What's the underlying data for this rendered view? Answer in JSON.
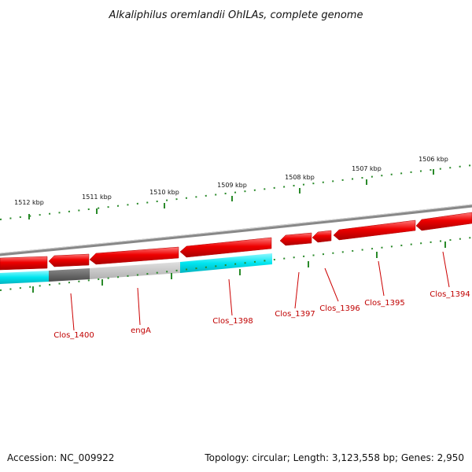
{
  "title": "Alkaliphilus oremlandii OhILAs, complete genome",
  "footer": {
    "accession": "Accession: NC_009922",
    "summary": "Topology: circular; Length: 3,123,558 bp; Genes: 2,950"
  },
  "scale_labels": [
    "1512 kbp",
    "1511 kbp",
    "1510 kbp",
    "1509 kbp",
    "1508 kbp",
    "1507 kbp",
    "1506 kbp"
  ],
  "genes": [
    {
      "name": "Clos_1400"
    },
    {
      "name": "engA"
    },
    {
      "name": "Clos_1398"
    },
    {
      "name": "Clos_1397"
    },
    {
      "name": "Clos_1396"
    },
    {
      "name": "Clos_1395"
    },
    {
      "name": "Clos_1394"
    }
  ],
  "colors": {
    "cds": "#ee0000",
    "cyan_track": "#00e5ef",
    "dark_gray_track": "#666666",
    "light_gray_track": "#c8c8c8",
    "backbone": "#888888",
    "ticks": "#2a8a2a",
    "gene_label": "#c00000"
  }
}
